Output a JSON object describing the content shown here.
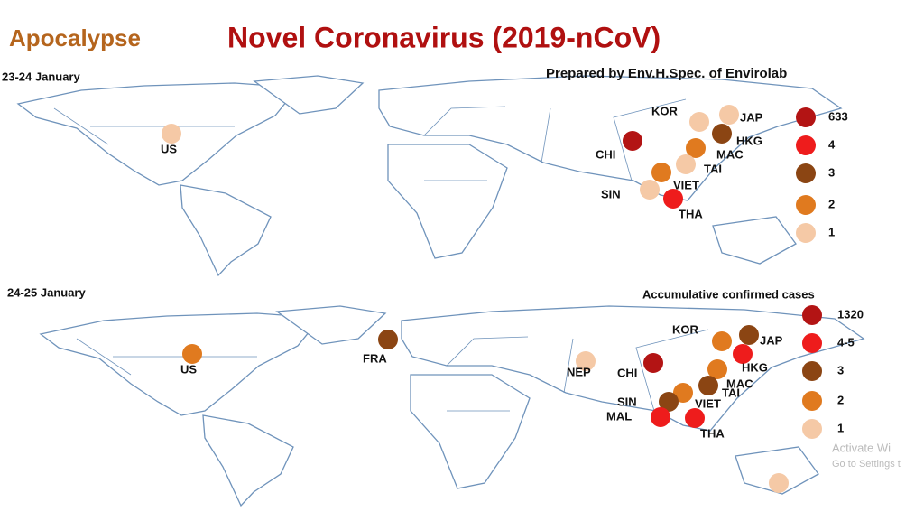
{
  "header": {
    "prefix": "Apocalypse",
    "title": "Novel Coronavirus (2019-nCoV)",
    "credit": "Prepared by Env.H.Spec. of Envirolab"
  },
  "panels": [
    {
      "date": "23-24 January",
      "legend": [
        {
          "label": "633",
          "color": "#b31414"
        },
        {
          "label": "4",
          "color": "#ee1c1c"
        },
        {
          "label": "3",
          "color": "#8b4513"
        },
        {
          "label": "2",
          "color": "#e07a1f"
        },
        {
          "label": "1",
          "color": "#f5c9a6"
        }
      ],
      "countries": [
        {
          "label": "US",
          "color": "#f5c9a6"
        },
        {
          "label": "CHI",
          "color": "#b31414"
        },
        {
          "label": "KOR",
          "color": "#f5c9a6"
        },
        {
          "label": "JAP",
          "color": "#f5c9a6"
        },
        {
          "label": "HKG",
          "color": "#8b4513"
        },
        {
          "label": "MAC",
          "color": "#e07a1f"
        },
        {
          "label": "TAI",
          "color": "#f5c9a6"
        },
        {
          "label": "VIET",
          "color": "#e07a1f"
        },
        {
          "label": "SIN",
          "color": "#f5c9a6"
        },
        {
          "label": "THA",
          "color": "#ee1c1c"
        }
      ]
    },
    {
      "date": "24-25 January",
      "legend_title": "Accumulative confirmed cases",
      "legend": [
        {
          "label": "1320",
          "color": "#b31414"
        },
        {
          "label": "4-5",
          "color": "#ee1c1c"
        },
        {
          "label": "3",
          "color": "#8b4513"
        },
        {
          "label": "2",
          "color": "#e07a1f"
        },
        {
          "label": "1",
          "color": "#f5c9a6"
        }
      ],
      "countries": [
        {
          "label": "US",
          "color": "#e07a1f"
        },
        {
          "label": "FRA",
          "color": "#8b4513"
        },
        {
          "label": "NEP",
          "color": "#f5c9a6"
        },
        {
          "label": "CHI",
          "color": "#b31414"
        },
        {
          "label": "KOR",
          "color": "#e07a1f"
        },
        {
          "label": "JAP",
          "color": "#8b4513"
        },
        {
          "label": "HKG",
          "color": "#ee1c1c"
        },
        {
          "label": "MAC",
          "color": "#e07a1f"
        },
        {
          "label": "TAI",
          "color": "#8b4513"
        },
        {
          "label": "VIET",
          "color": "#e07a1f"
        },
        {
          "label": "SIN",
          "color": "#8b4513"
        },
        {
          "label": "MAL",
          "color": "#ee1c1c"
        },
        {
          "label": "THA",
          "color": "#ee1c1c"
        },
        {
          "color": "#f5c9a6"
        }
      ]
    }
  ],
  "watermark": {
    "line1": "Activate Wi",
    "line2": "Go to Settings t"
  }
}
